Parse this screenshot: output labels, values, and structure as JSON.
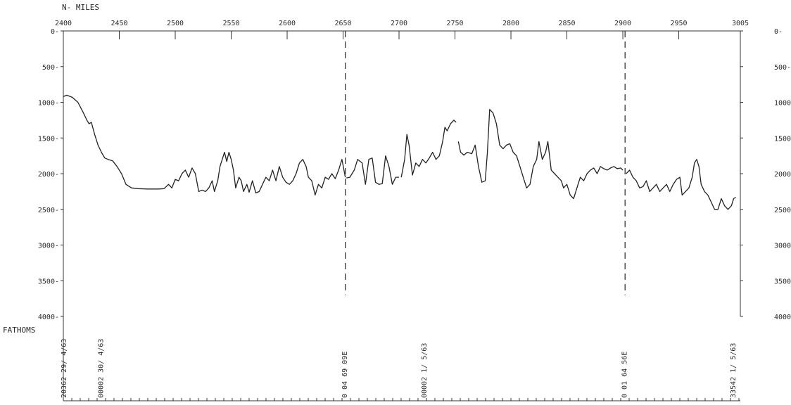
{
  "chart_data": {
    "type": "line",
    "top_axis_title": "N- MILES",
    "left_axis_unit": "FATHOMS",
    "x_ticks": [
      "2400",
      "2450",
      "2500",
      "2550",
      "2600",
      "2650",
      "2700",
      "2750",
      "2800",
      "2850",
      "2900",
      "2950",
      "3005"
    ],
    "y_ticks_left": [
      "0-",
      "500-",
      "1000-",
      "1500-",
      "2000-",
      "2500-",
      "3000-",
      "3500-",
      "4000-"
    ],
    "y_ticks_right": [
      "0-",
      "500-",
      "1000-",
      "1500-",
      "2000-",
      "2500-",
      "3000-",
      "3500-",
      "4000-"
    ],
    "xlim": [
      2400,
      3005
    ],
    "ylim": [
      0,
      4000
    ],
    "y_inverted": true,
    "grid": false,
    "dashed_markers_x": [
      2652,
      2902
    ],
    "bottom_annotations": [
      {
        "x": 2400,
        "text": "20362 29/ 4/63"
      },
      {
        "x": 2433,
        "text": "00002 30/ 4/63"
      },
      {
        "x": 2651,
        "text": "0 04 69 09E"
      },
      {
        "x": 2722,
        "text": "00002 1/ 5/63"
      },
      {
        "x": 2901,
        "text": "0 01 64 56E"
      },
      {
        "x": 2998,
        "text": "33542 1/ 5/63"
      }
    ],
    "series": [
      {
        "segments": [
          [
            [
              2400,
              920
            ],
            [
              2403,
              900
            ],
            [
              2408,
              930
            ],
            [
              2413,
              1000
            ],
            [
              2418,
              1150
            ],
            [
              2421,
              1250
            ],
            [
              2423,
              1300
            ],
            [
              2425,
              1280
            ],
            [
              2428,
              1450
            ],
            [
              2431,
              1600
            ],
            [
              2434,
              1700
            ],
            [
              2437,
              1780
            ],
            [
              2440,
              1800
            ],
            [
              2444,
              1820
            ],
            [
              2448,
              1900
            ],
            [
              2452,
              2000
            ],
            [
              2456,
              2150
            ],
            [
              2461,
              2200
            ],
            [
              2467,
              2210
            ],
            [
              2475,
              2215
            ],
            [
              2485,
              2215
            ],
            [
              2490,
              2210
            ],
            [
              2494,
              2150
            ],
            [
              2497,
              2200
            ],
            [
              2500,
              2080
            ],
            [
              2503,
              2100
            ],
            [
              2506,
              2000
            ],
            [
              2509,
              1950
            ],
            [
              2512,
              2050
            ],
            [
              2515,
              1920
            ],
            [
              2518,
              2000
            ],
            [
              2521,
              2250
            ],
            [
              2524,
              2230
            ],
            [
              2527,
              2250
            ],
            [
              2530,
              2200
            ],
            [
              2533,
              2100
            ],
            [
              2535,
              2250
            ],
            [
              2538,
              2100
            ],
            [
              2540,
              1900
            ],
            [
              2542,
              1800
            ],
            [
              2544,
              1700
            ],
            [
              2546,
              1830
            ],
            [
              2548,
              1700
            ],
            [
              2550,
              1800
            ],
            [
              2552,
              1950
            ],
            [
              2554,
              2200
            ],
            [
              2557,
              2050
            ],
            [
              2559,
              2100
            ],
            [
              2561,
              2250
            ],
            [
              2564,
              2150
            ],
            [
              2566,
              2260
            ],
            [
              2569,
              2100
            ],
            [
              2572,
              2270
            ],
            [
              2575,
              2250
            ],
            [
              2578,
              2150
            ],
            [
              2581,
              2050
            ],
            [
              2584,
              2100
            ],
            [
              2587,
              1950
            ],
            [
              2590,
              2100
            ],
            [
              2593,
              1900
            ],
            [
              2596,
              2050
            ],
            [
              2599,
              2120
            ],
            [
              2602,
              2150
            ],
            [
              2605,
              2100
            ],
            [
              2608,
              2000
            ],
            [
              2611,
              1850
            ],
            [
              2614,
              1800
            ],
            [
              2617,
              1900
            ],
            [
              2619,
              2050
            ],
            [
              2622,
              2100
            ],
            [
              2625,
              2300
            ],
            [
              2628,
              2150
            ],
            [
              2631,
              2200
            ],
            [
              2634,
              2050
            ],
            [
              2637,
              2080
            ],
            [
              2640,
              2000
            ],
            [
              2643,
              2070
            ],
            [
              2646,
              1950
            ],
            [
              2649,
              1800
            ],
            [
              2652,
              2050
            ]
          ],
          [
            [
              2653,
              2060
            ],
            [
              2656,
              2050
            ],
            [
              2660,
              1950
            ],
            [
              2663,
              1800
            ],
            [
              2667,
              1850
            ],
            [
              2670,
              2150
            ],
            [
              2673,
              1800
            ],
            [
              2676,
              1780
            ],
            [
              2679,
              2120
            ],
            [
              2682,
              2150
            ],
            [
              2685,
              2140
            ],
            [
              2688,
              1750
            ],
            [
              2691,
              1900
            ],
            [
              2694,
              2150
            ],
            [
              2697,
              2050
            ],
            [
              2700,
              2050
            ]
          ],
          [
            [
              2702,
              2050
            ],
            [
              2705,
              1800
            ],
            [
              2707,
              1450
            ],
            [
              2709,
              1600
            ],
            [
              2712,
              2020
            ],
            [
              2715,
              1850
            ],
            [
              2718,
              1900
            ],
            [
              2721,
              1800
            ],
            [
              2724,
              1850
            ],
            [
              2727,
              1780
            ],
            [
              2730,
              1700
            ],
            [
              2733,
              1800
            ],
            [
              2736,
              1750
            ],
            [
              2739,
              1550
            ],
            [
              2741,
              1350
            ],
            [
              2743,
              1400
            ],
            [
              2746,
              1300
            ],
            [
              2749,
              1250
            ],
            [
              2751,
              1280
            ]
          ],
          [
            [
              2753,
              1550
            ],
            [
              2755,
              1700
            ],
            [
              2758,
              1740
            ],
            [
              2761,
              1700
            ],
            [
              2765,
              1720
            ],
            [
              2768,
              1600
            ],
            [
              2771,
              1900
            ],
            [
              2774,
              2120
            ],
            [
              2777,
              2100
            ],
            [
              2779,
              1700
            ],
            [
              2781,
              1100
            ],
            [
              2784,
              1150
            ],
            [
              2787,
              1300
            ],
            [
              2790,
              1600
            ],
            [
              2793,
              1650
            ],
            [
              2796,
              1600
            ],
            [
              2799,
              1580
            ],
            [
              2802,
              1700
            ],
            [
              2805,
              1750
            ],
            [
              2808,
              1900
            ],
            [
              2811,
              2050
            ],
            [
              2814,
              2200
            ],
            [
              2817,
              2150
            ],
            [
              2820,
              1900
            ],
            [
              2823,
              1800
            ],
            [
              2825,
              1550
            ],
            [
              2828,
              1800
            ],
            [
              2831,
              1700
            ],
            [
              2833,
              1550
            ],
            [
              2836,
              1950
            ],
            [
              2839,
              2000
            ],
            [
              2842,
              2050
            ],
            [
              2845,
              2100
            ],
            [
              2847,
              2200
            ],
            [
              2850,
              2150
            ],
            [
              2853,
              2300
            ],
            [
              2856,
              2350
            ],
            [
              2859,
              2200
            ],
            [
              2862,
              2050
            ],
            [
              2865,
              2100
            ],
            [
              2868,
              2000
            ],
            [
              2871,
              1950
            ],
            [
              2874,
              1920
            ],
            [
              2877,
              2000
            ],
            [
              2880,
              1900
            ],
            [
              2883,
              1930
            ],
            [
              2886,
              1950
            ],
            [
              2889,
              1920
            ],
            [
              2892,
              1900
            ],
            [
              2895,
              1930
            ],
            [
              2898,
              1920
            ],
            [
              2900,
              1950
            ]
          ],
          [
            [
              2903,
              2000
            ],
            [
              2906,
              1950
            ],
            [
              2909,
              2050
            ],
            [
              2912,
              2100
            ],
            [
              2915,
              2200
            ],
            [
              2918,
              2180
            ],
            [
              2921,
              2100
            ],
            [
              2924,
              2250
            ],
            [
              2927,
              2200
            ],
            [
              2930,
              2150
            ],
            [
              2933,
              2250
            ],
            [
              2936,
              2200
            ],
            [
              2939,
              2150
            ],
            [
              2942,
              2250
            ],
            [
              2945,
              2150
            ],
            [
              2948,
              2080
            ],
            [
              2951,
              2050
            ],
            [
              2953,
              2300
            ],
            [
              2956,
              2250
            ],
            [
              2959,
              2200
            ],
            [
              2962,
              2050
            ],
            [
              2964,
              1850
            ],
            [
              2966,
              1800
            ],
            [
              2968,
              1900
            ],
            [
              2970,
              2150
            ],
            [
              2973,
              2250
            ],
            [
              2976,
              2300
            ],
            [
              2979,
              2400
            ],
            [
              2982,
              2500
            ],
            [
              2985,
              2500
            ],
            [
              2988,
              2350
            ],
            [
              2991,
              2450
            ],
            [
              2994,
              2500
            ],
            [
              2997,
              2450
            ],
            [
              2999,
              2350
            ],
            [
              3001,
              2330
            ]
          ]
        ]
      }
    ]
  }
}
